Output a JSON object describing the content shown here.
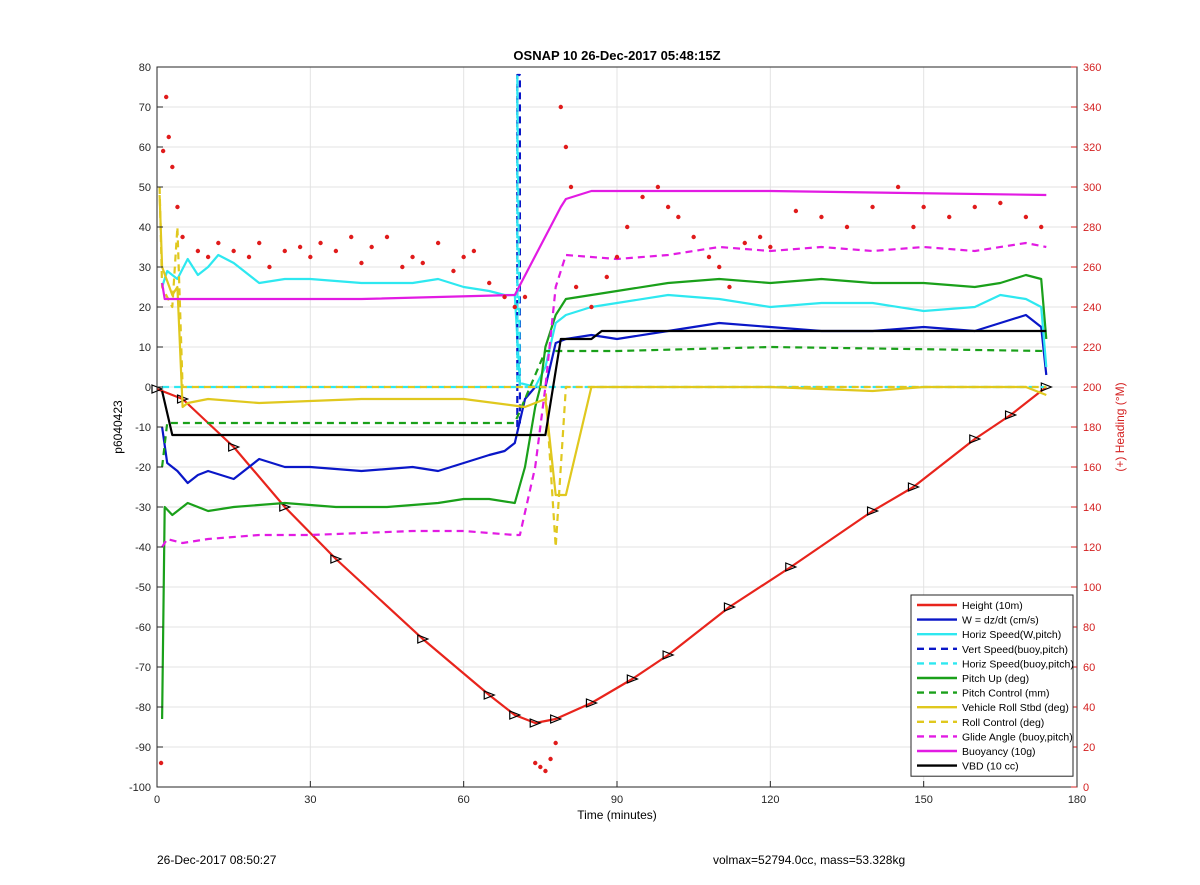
{
  "chart_data": {
    "type": "line",
    "title": "OSNAP 10 26-Dec-2017 05:48:15Z",
    "xlabel": "Time (minutes)",
    "ylabel": "p6040423",
    "y2label": "(+) Heading (°M)",
    "xlim": [
      0,
      180
    ],
    "ylim": [
      -100,
      80
    ],
    "y2lim": [
      0,
      360
    ],
    "xticks": [
      "0",
      "30",
      "60",
      "90",
      "120",
      "150",
      "180"
    ],
    "yticks": [
      "-100",
      "-90",
      "-80",
      "-70",
      "-60",
      "-50",
      "-40",
      "-30",
      "-20",
      "-10",
      "0",
      "10",
      "20",
      "30",
      "40",
      "50",
      "60",
      "70",
      "80"
    ],
    "y2ticks": [
      "0",
      "20",
      "40",
      "60",
      "80",
      "100",
      "120",
      "140",
      "160",
      "180",
      "200",
      "220",
      "240",
      "260",
      "280",
      "300",
      "320",
      "340",
      "360"
    ],
    "grid": true,
    "legend_position": "bottom-right",
    "colors": {
      "height": "#e8241c",
      "w": "#0a17c8",
      "horiz": "#2ee8f0",
      "pitch": "#1aa01a",
      "roll": "#e0c81e",
      "glide": "#e21be3",
      "buoy": "#e21be3",
      "vbd": "#000000",
      "heading": "#e01b1b",
      "axis_right": "#d42020"
    },
    "series": [
      {
        "name": "Height (10m)",
        "color": "#e8241c",
        "style": "solid",
        "axis": "left",
        "x": [
          0,
          5,
          15,
          25,
          35,
          52,
          65,
          70,
          74,
          78,
          85,
          93,
          100,
          112,
          124,
          140,
          148,
          160,
          167,
          174
        ],
        "y": [
          -0.5,
          -3,
          -15,
          -30,
          -43,
          -63,
          -77,
          -82,
          -84,
          -83,
          -79,
          -73,
          -67,
          -55,
          -45,
          -31,
          -25,
          -13,
          -7,
          0
        ]
      },
      {
        "name": "W = dz/dt (cm/s)",
        "color": "#0a17c8",
        "style": "solid",
        "axis": "left",
        "x": [
          1,
          2,
          4,
          6,
          8,
          10,
          15,
          20,
          25,
          30,
          40,
          50,
          55,
          60,
          65,
          68,
          70,
          72,
          74,
          76,
          78,
          80,
          85,
          90,
          100,
          110,
          120,
          130,
          140,
          150,
          160,
          165,
          170,
          173,
          174
        ],
        "y": [
          -10,
          -19,
          -21,
          -24,
          -22,
          -21,
          -23,
          -18,
          -20,
          -20,
          -21,
          -20,
          -21,
          -19,
          -17,
          -16,
          -14,
          -3,
          0,
          0,
          11,
          12,
          13,
          12,
          14,
          16,
          15,
          14,
          14,
          15,
          14,
          16,
          18,
          15,
          3
        ]
      },
      {
        "name": "Horiz Speed(W,pitch)",
        "color": "#2ee8f0",
        "style": "solid",
        "axis": "left",
        "x": [
          1,
          2,
          4,
          6,
          8,
          10,
          12,
          15,
          20,
          25,
          30,
          40,
          50,
          55,
          60,
          65,
          68,
          70,
          71,
          74,
          76,
          78,
          80,
          85,
          90,
          100,
          110,
          120,
          130,
          140,
          150,
          160,
          165,
          170,
          173,
          174
        ],
        "y": [
          25,
          29,
          27,
          32,
          28,
          30,
          33,
          31,
          26,
          27,
          27,
          26,
          26,
          27,
          25,
          24,
          23,
          23,
          1,
          0,
          5,
          16,
          18,
          20,
          21,
          23,
          22,
          20,
          21,
          21,
          19,
          20,
          23,
          22,
          20,
          5
        ]
      },
      {
        "name": "Vert Speed(buoy,pitch)",
        "color": "#0a17c8",
        "style": "dashed",
        "axis": "left",
        "x": [
          70.5,
          70.5,
          71,
          71
        ],
        "y": [
          -10,
          78,
          78,
          -10
        ]
      },
      {
        "name": "Horiz Speed(buoy,pitch)",
        "color": "#2ee8f0",
        "style": "dashed",
        "axis": "left",
        "x": [
          1,
          60,
          70,
          70.5,
          70.5,
          71,
          76,
          90,
          130,
          174
        ],
        "y": [
          0,
          0,
          0,
          0,
          78,
          0,
          0,
          0,
          0,
          0
        ]
      },
      {
        "name": "Pitch Up (deg)",
        "color": "#1aa01a",
        "style": "solid",
        "axis": "left",
        "x": [
          1,
          1.5,
          3,
          6,
          10,
          15,
          25,
          35,
          45,
          55,
          60,
          65,
          70,
          72,
          74,
          75,
          76,
          78,
          80,
          85,
          90,
          100,
          110,
          120,
          130,
          140,
          150,
          160,
          165,
          170,
          173,
          174
        ],
        "y": [
          -83,
          -30,
          -32,
          -29,
          -31,
          -30,
          -29,
          -30,
          -30,
          -29,
          -28,
          -28,
          -29,
          -20,
          -5,
          0,
          10,
          18,
          22,
          23,
          24,
          26,
          27,
          26,
          27,
          26,
          26,
          25,
          26,
          28,
          27,
          12
        ]
      },
      {
        "name": "Pitch Control (mm)",
        "color": "#1aa01a",
        "style": "dashed",
        "axis": "left",
        "x": [
          1,
          2,
          30,
          70,
          76,
          90,
          120,
          174
        ],
        "y": [
          -20,
          -9,
          -9,
          -9,
          9,
          9,
          10,
          9
        ]
      },
      {
        "name": "Vehicle Roll Stbd (deg)",
        "color": "#e0c81e",
        "style": "solid",
        "axis": "left",
        "x": [
          0.5,
          1,
          3,
          4,
          5,
          6,
          10,
          20,
          40,
          60,
          72,
          76,
          78,
          80,
          85,
          90,
          100,
          120,
          140,
          150,
          160,
          170,
          174
        ],
        "y": [
          48,
          30,
          23,
          25,
          -5,
          -4,
          -3,
          -4,
          -3,
          -3,
          -5,
          -3,
          -27,
          -27,
          0,
          0,
          0,
          0,
          -1,
          0,
          0,
          0,
          -2
        ]
      },
      {
        "name": "Roll Control (deg)",
        "color": "#e0c81e",
        "style": "dashed",
        "axis": "left",
        "x": [
          0.5,
          1,
          3,
          4,
          5,
          10,
          30,
          60,
          72,
          76,
          78,
          80,
          90,
          120,
          150,
          174
        ],
        "y": [
          50,
          25,
          20,
          40,
          0,
          0,
          0,
          0,
          0,
          0,
          -40,
          0,
          0,
          0,
          0,
          0
        ]
      },
      {
        "name": "Glide Angle (buoy,pitch)",
        "color": "#e21be3",
        "style": "dashed",
        "axis": "left",
        "x": [
          1,
          2,
          5,
          10,
          20,
          30,
          50,
          60,
          70,
          71,
          74,
          76,
          78,
          80,
          90,
          100,
          110,
          120,
          130,
          140,
          150,
          160,
          170,
          174
        ],
        "y": [
          -40,
          -38,
          -39,
          -38,
          -37,
          -37,
          -36,
          -36,
          -37,
          -37,
          -20,
          0,
          25,
          33,
          32,
          33,
          35,
          34,
          35,
          34,
          35,
          34,
          36,
          35
        ]
      },
      {
        "name": "Buoyancy (10g)",
        "color": "#e21be3",
        "style": "solid",
        "axis": "left",
        "x": [
          1,
          1.5,
          5,
          40,
          70,
          79,
          80,
          85,
          120,
          174
        ],
        "y": [
          26,
          22,
          22,
          22,
          23,
          45,
          47,
          49,
          49,
          48
        ]
      },
      {
        "name": "VBD (10 cc)",
        "color": "#000000",
        "style": "solid",
        "axis": "left",
        "x": [
          1,
          3,
          70,
          74,
          76,
          79,
          80,
          85,
          87,
          120,
          174
        ],
        "y": [
          -1,
          -12,
          -12,
          -12,
          -12,
          12,
          12,
          12,
          14,
          14,
          14
        ]
      },
      {
        "name": "Heading",
        "color": "#e01b1b",
        "style": "points",
        "axis": "right",
        "x": [
          0.8,
          1.2,
          1.8,
          2.3,
          3,
          4,
          5,
          8,
          10,
          12,
          15,
          18,
          20,
          22,
          25,
          28,
          30,
          32,
          35,
          38,
          40,
          42,
          45,
          48,
          50,
          52,
          55,
          58,
          60,
          62,
          65,
          68,
          70,
          72,
          74,
          75,
          76,
          77,
          78,
          79,
          80,
          81,
          82,
          85,
          88,
          90,
          92,
          95,
          98,
          100,
          102,
          105,
          108,
          110,
          112,
          115,
          118,
          120,
          125,
          130,
          135,
          140,
          145,
          148,
          150,
          155,
          160,
          165,
          170,
          173
        ],
        "y": [
          12,
          318,
          345,
          325,
          310,
          290,
          275,
          268,
          265,
          272,
          268,
          265,
          272,
          260,
          268,
          270,
          265,
          272,
          268,
          275,
          262,
          270,
          275,
          260,
          265,
          262,
          272,
          258,
          265,
          268,
          252,
          245,
          240,
          245,
          12,
          10,
          8,
          14,
          22,
          340,
          320,
          300,
          250,
          240,
          255,
          265,
          280,
          295,
          300,
          290,
          285,
          275,
          265,
          260,
          250,
          272,
          275,
          270,
          288,
          285,
          280,
          290,
          300,
          280,
          290,
          285,
          290,
          292,
          285,
          280
        ]
      }
    ],
    "legend": [
      {
        "name": "Height (10m)",
        "color": "#e8241c",
        "style": "solid"
      },
      {
        "name": "W = dz/dt (cm/s)",
        "color": "#0a17c8",
        "style": "solid"
      },
      {
        "name": "Horiz Speed(W,pitch)",
        "color": "#2ee8f0",
        "style": "solid"
      },
      {
        "name": "Vert Speed(buoy,pitch)",
        "color": "#0a17c8",
        "style": "dashed"
      },
      {
        "name": "Horiz Speed(buoy,pitch)",
        "color": "#2ee8f0",
        "style": "dashed"
      },
      {
        "name": "Pitch Up (deg)",
        "color": "#1aa01a",
        "style": "solid"
      },
      {
        "name": "Pitch Control (mm)",
        "color": "#1aa01a",
        "style": "dashed"
      },
      {
        "name": "Vehicle Roll Stbd (deg)",
        "color": "#e0c81e",
        "style": "solid"
      },
      {
        "name": "Roll Control (deg)",
        "color": "#e0c81e",
        "style": "dashed"
      },
      {
        "name": "Glide Angle (buoy,pitch)",
        "color": "#e21be3",
        "style": "dashed"
      },
      {
        "name": "Buoyancy (10g)",
        "color": "#e21be3",
        "style": "solid"
      },
      {
        "name": "VBD (10 cc)",
        "color": "#000000",
        "style": "solid"
      }
    ]
  },
  "footer": {
    "left": "26-Dec-2017 08:50:27",
    "right": "volmax=52794.0cc, mass=53.328kg"
  }
}
